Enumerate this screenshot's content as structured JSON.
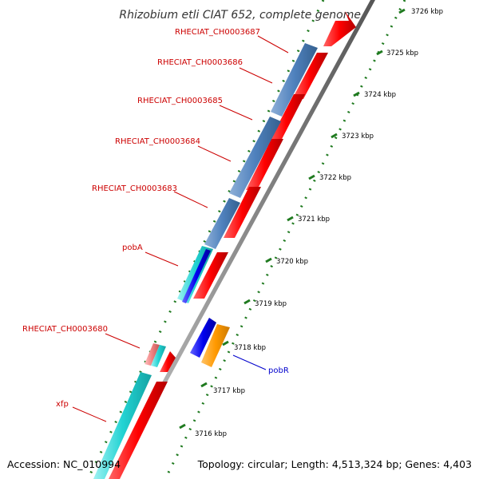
{
  "title": "Rhizobium etli CIAT 652, complete genome",
  "footer": {
    "accession": "Accession: NC_010994",
    "topology": "Topology: circular; Length: 4,513,324 bp; Genes: 4,403"
  },
  "colors": {
    "backbone": "#8c8c8c",
    "tick_dot": "#1f7a1f",
    "forward_cds": "#ff0000",
    "steelblue_feature": "#4f81bd",
    "cyan_feature": "#22d3d3",
    "blue_feature": "#0000ee",
    "orange_feature": "#ff9900",
    "pink_feature": "#f08080",
    "label_red": "#cc0000",
    "label_blue": "#0000cc"
  },
  "gene_labels": [
    {
      "text": "RHECIAT_CH0003687",
      "color": "red"
    },
    {
      "text": "RHECIAT_CH0003686",
      "color": "red"
    },
    {
      "text": "RHECIAT_CH0003685",
      "color": "red"
    },
    {
      "text": "RHECIAT_CH0003684",
      "color": "red"
    },
    {
      "text": "RHECIAT_CH0003683",
      "color": "red"
    },
    {
      "text": "pobA",
      "color": "red"
    },
    {
      "text": "RHECIAT_CH0003680",
      "color": "red"
    },
    {
      "text": "xfp",
      "color": "red"
    },
    {
      "text": "pobR",
      "color": "blue"
    }
  ],
  "scale_ticks": [
    "3726 kbp",
    "3725 kbp",
    "3724 kbp",
    "3723 kbp",
    "3722 kbp",
    "3721 kbp",
    "3720 kbp",
    "3719 kbp",
    "3718 kbp",
    "3717 kbp",
    "3716 kbp"
  ]
}
